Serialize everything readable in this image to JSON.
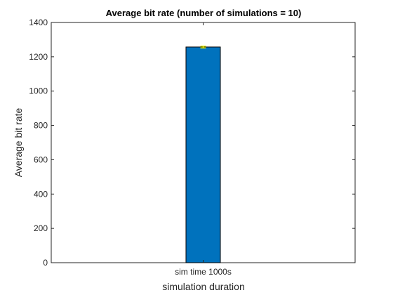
{
  "chart_data": {
    "type": "bar",
    "title": "Average bit rate (number of simulations = 10)",
    "xlabel": "simulation duration",
    "ylabel": "Average bit rate",
    "categories": [
      "sim time 1000s"
    ],
    "values": [
      1257
    ],
    "error": [
      5
    ],
    "ylim": [
      0,
      1400
    ],
    "yticks": [
      0,
      200,
      400,
      600,
      800,
      1000,
      1200,
      1400
    ],
    "grid": false,
    "legend": "none",
    "bar_color": "#0072BD",
    "error_color": "#EDEF00"
  }
}
